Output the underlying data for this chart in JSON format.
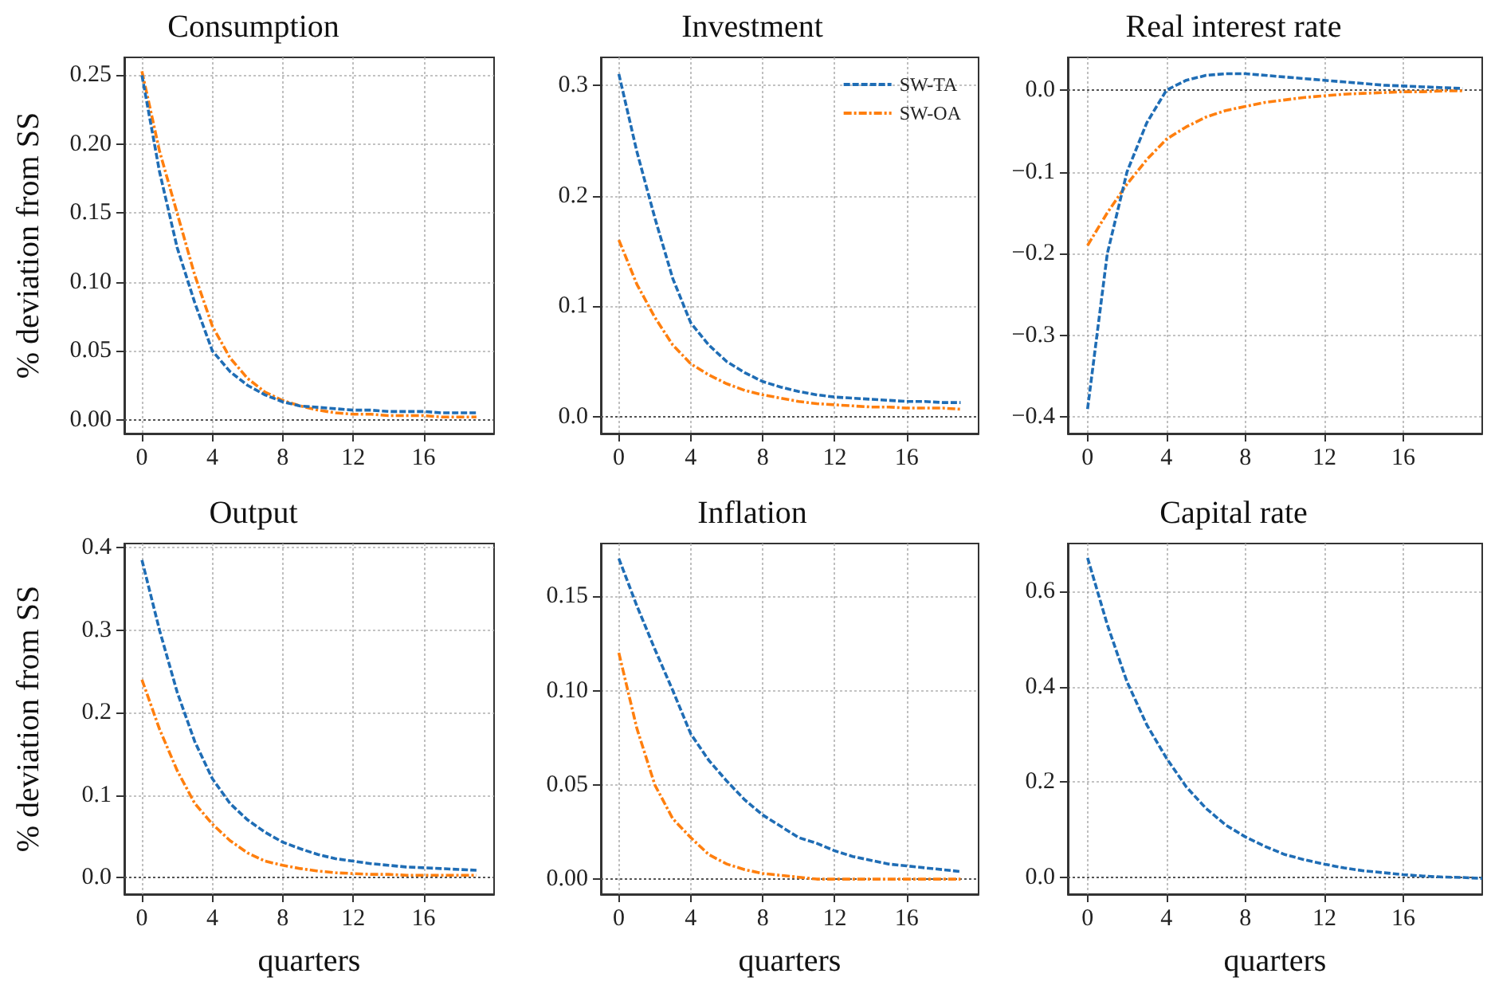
{
  "chart_data": [
    {
      "type": "line",
      "title": "Consumption",
      "ylabel": "% deviation from SS",
      "x": [
        0,
        1,
        2,
        3,
        4,
        5,
        6,
        7,
        8,
        9,
        10,
        11,
        12,
        13,
        14,
        15,
        16,
        17,
        18,
        19
      ],
      "xlim": [
        -1,
        20
      ],
      "xticks": [
        0,
        4,
        8,
        12,
        16
      ],
      "ylim": [
        -0.01,
        0.263
      ],
      "yticks": [
        {
          "value": 0,
          "label": "0.00"
        },
        0.05,
        {
          "value": 0.1,
          "label": "0.10"
        },
        0.15,
        {
          "value": 0.2,
          "label": "0.20"
        },
        0.25
      ],
      "grid": true,
      "marker": "none",
      "legend": false,
      "ref_lines": [
        {
          "axis": "y",
          "value": 0,
          "color": "#555555",
          "line_style": "dotted"
        }
      ],
      "series": [
        {
          "color": "#1f6db5",
          "line_style": "dashed",
          "values": [
            0.25,
            0.18,
            0.125,
            0.085,
            0.05,
            0.035,
            0.025,
            0.018,
            0.013,
            0.01,
            0.009,
            0.008,
            0.007,
            0.007,
            0.006,
            0.006,
            0.006,
            0.005,
            0.005,
            0.005
          ]
        },
        {
          "color": "#ff7f0e",
          "line_style": "dashdot",
          "values": [
            0.253,
            0.195,
            0.15,
            0.105,
            0.068,
            0.045,
            0.03,
            0.02,
            0.014,
            0.01,
            0.007,
            0.005,
            0.004,
            0.004,
            0.003,
            0.003,
            0.003,
            0.002,
            0.002,
            0.002
          ]
        }
      ]
    },
    {
      "type": "line",
      "title": "Investment",
      "x": [
        0,
        1,
        2,
        3,
        4,
        5,
        6,
        7,
        8,
        9,
        10,
        11,
        12,
        13,
        14,
        15,
        16,
        17,
        18,
        19
      ],
      "xlim": [
        -1,
        20
      ],
      "xticks": [
        0,
        4,
        8,
        12,
        16
      ],
      "ylim": [
        -0.015,
        0.325
      ],
      "yticks": [
        {
          "value": 0,
          "label": "0.0"
        },
        0.1,
        0.2,
        0.3
      ],
      "grid": true,
      "marker": "none",
      "legend": "top right",
      "ref_lines": [
        {
          "axis": "y",
          "value": 0,
          "color": "#555555",
          "line_style": "dotted"
        }
      ],
      "series": [
        {
          "name": "SW-TA",
          "color": "#1f6db5",
          "line_style": "dashed",
          "values": [
            0.31,
            0.24,
            0.18,
            0.125,
            0.085,
            0.065,
            0.05,
            0.04,
            0.032,
            0.027,
            0.023,
            0.02,
            0.018,
            0.017,
            0.016,
            0.015,
            0.014,
            0.014,
            0.013,
            0.013
          ]
        },
        {
          "name": "SW-OA",
          "color": "#ff7f0e",
          "line_style": "dashdot",
          "values": [
            0.16,
            0.12,
            0.09,
            0.065,
            0.048,
            0.038,
            0.03,
            0.024,
            0.02,
            0.017,
            0.014,
            0.012,
            0.011,
            0.01,
            0.009,
            0.009,
            0.008,
            0.008,
            0.008,
            0.007
          ]
        }
      ]
    },
    {
      "type": "line",
      "title": "Real interest rate",
      "x": [
        0,
        1,
        2,
        3,
        4,
        5,
        6,
        7,
        8,
        9,
        10,
        11,
        12,
        13,
        14,
        15,
        16,
        17,
        18,
        19
      ],
      "xlim": [
        -1,
        20
      ],
      "xticks": [
        0,
        4,
        8,
        12,
        16
      ],
      "ylim": [
        -0.42,
        0.04
      ],
      "yticks": [
        {
          "value": -0.4,
          "label": "−0.4"
        },
        {
          "value": -0.3,
          "label": "−0.3"
        },
        {
          "value": -0.2,
          "label": "−0.2"
        },
        {
          "value": -0.1,
          "label": "−0.1"
        },
        {
          "value": 0,
          "label": "0.0"
        }
      ],
      "grid": true,
      "marker": "none",
      "legend": false,
      "ref_lines": [
        {
          "axis": "y",
          "value": 0,
          "color": "#555555",
          "line_style": "dotted"
        }
      ],
      "series": [
        {
          "color": "#1f6db5",
          "line_style": "dashed",
          "values": [
            -0.39,
            -0.2,
            -0.1,
            -0.04,
            0,
            0.012,
            0.018,
            0.02,
            0.02,
            0.018,
            0.016,
            0.014,
            0.012,
            0.01,
            0.008,
            0.006,
            0.005,
            0.004,
            0.003,
            0.002
          ]
        },
        {
          "color": "#ff7f0e",
          "line_style": "dashdot",
          "values": [
            -0.19,
            -0.15,
            -0.115,
            -0.085,
            -0.06,
            -0.045,
            -0.033,
            -0.025,
            -0.02,
            -0.015,
            -0.012,
            -0.009,
            -0.007,
            -0.005,
            -0.004,
            -0.003,
            -0.002,
            -0.002,
            -0.001,
            -0.001
          ]
        }
      ]
    },
    {
      "type": "line",
      "title": "Output",
      "ylabel": "% deviation from SS",
      "xlabel": "quarters",
      "x": [
        0,
        1,
        2,
        3,
        4,
        5,
        6,
        7,
        8,
        9,
        10,
        11,
        12,
        13,
        14,
        15,
        16,
        17,
        18,
        19
      ],
      "xlim": [
        -1,
        20
      ],
      "xticks": [
        0,
        4,
        8,
        12,
        16
      ],
      "ylim": [
        -0.02,
        0.405
      ],
      "yticks": [
        {
          "value": 0,
          "label": "0.0"
        },
        0.1,
        0.2,
        0.3,
        0.4
      ],
      "grid": true,
      "marker": "none",
      "legend": false,
      "ref_lines": [
        {
          "axis": "y",
          "value": 0,
          "color": "#555555",
          "line_style": "dotted"
        }
      ],
      "series": [
        {
          "color": "#1f6db5",
          "line_style": "dashed",
          "values": [
            0.385,
            0.3,
            0.225,
            0.165,
            0.12,
            0.09,
            0.07,
            0.055,
            0.043,
            0.035,
            0.028,
            0.023,
            0.02,
            0.017,
            0.015,
            0.013,
            0.012,
            0.011,
            0.01,
            0.009
          ]
        },
        {
          "color": "#ff7f0e",
          "line_style": "dashdot",
          "values": [
            0.24,
            0.18,
            0.13,
            0.09,
            0.065,
            0.045,
            0.03,
            0.02,
            0.015,
            0.011,
            0.008,
            0.006,
            0.005,
            0.004,
            0.004,
            0.003,
            0.003,
            0.003,
            0.003,
            0.003
          ]
        }
      ]
    },
    {
      "type": "line",
      "title": "Inflation",
      "xlabel": "quarters",
      "x": [
        0,
        1,
        2,
        3,
        4,
        5,
        6,
        7,
        8,
        9,
        10,
        11,
        12,
        13,
        14,
        15,
        16,
        17,
        18,
        19
      ],
      "xlim": [
        -1,
        20
      ],
      "xticks": [
        0,
        4,
        8,
        12,
        16
      ],
      "ylim": [
        -0.008,
        0.178
      ],
      "yticks": [
        {
          "value": 0,
          "label": "0.00"
        },
        0.05,
        {
          "value": 0.1,
          "label": "0.10"
        },
        0.15
      ],
      "grid": true,
      "marker": "none",
      "legend": false,
      "ref_lines": [
        {
          "axis": "y",
          "value": 0,
          "color": "#555555",
          "line_style": "dotted"
        }
      ],
      "series": [
        {
          "color": "#1f6db5",
          "line_style": "dashed",
          "values": [
            0.17,
            0.145,
            0.122,
            0.1,
            0.077,
            0.063,
            0.052,
            0.042,
            0.034,
            0.028,
            0.022,
            0.019,
            0.015,
            0.012,
            0.01,
            0.008,
            0.007,
            0.006,
            0.005,
            0.004
          ]
        },
        {
          "color": "#ff7f0e",
          "line_style": "dashdot",
          "values": [
            0.12,
            0.08,
            0.05,
            0.032,
            0.022,
            0.013,
            0.008,
            0.005,
            0.003,
            0.002,
            0.001,
            0,
            0,
            0,
            0,
            0,
            0,
            0,
            0,
            0
          ]
        }
      ]
    },
    {
      "type": "line",
      "title": "Capital rate",
      "xlabel": "quarters",
      "x": [
        0,
        1,
        2,
        3,
        4,
        5,
        6,
        7,
        8,
        9,
        10,
        11,
        12,
        13,
        14,
        15,
        16,
        17,
        18,
        19,
        20
      ],
      "xlim": [
        -1,
        20
      ],
      "xticks": [
        0,
        4,
        8,
        12,
        16
      ],
      "ylim": [
        -0.035,
        0.7
      ],
      "yticks": [
        {
          "value": 0,
          "label": "0.0"
        },
        0.2,
        0.4,
        0.6
      ],
      "grid": true,
      "marker": "none",
      "legend": false,
      "ref_lines": [
        {
          "axis": "y",
          "value": 0,
          "color": "#555555",
          "line_style": "dotted"
        }
      ],
      "series": [
        {
          "color": "#1f6db5",
          "line_style": "dashed",
          "values": [
            0.67,
            0.53,
            0.41,
            0.32,
            0.25,
            0.19,
            0.145,
            0.11,
            0.085,
            0.065,
            0.048,
            0.037,
            0.028,
            0.02,
            0.014,
            0.01,
            0.006,
            0.003,
            0.001,
            0,
            -0.002
          ]
        }
      ]
    }
  ]
}
